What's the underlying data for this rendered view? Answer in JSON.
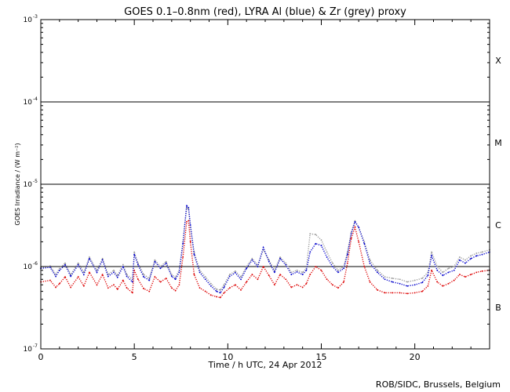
{
  "chart_data": {
    "type": "scatter",
    "title": "GOES 0.1–0.8nm (red), LYRA Al (blue) & Zr (grey) proxy",
    "xlabel": "Time / h UTC, 24 Apr 2012",
    "ylabel": "GOES Irradiance / (W m⁻²)",
    "credit": "ROB/SIDC, Brussels, Belgium",
    "xlim": [
      0,
      24
    ],
    "ylim": [
      1e-07,
      0.001
    ],
    "yscale": "log",
    "x_ticks": [
      0,
      5,
      10,
      15,
      20
    ],
    "y_ticks": [
      {
        "value": 1e-07,
        "mantissa": "10",
        "exp": "-7"
      },
      {
        "value": 1e-06,
        "mantissa": "10",
        "exp": "-6"
      },
      {
        "value": 1e-05,
        "mantissa": "10",
        "exp": "-5"
      },
      {
        "value": 0.0001,
        "mantissa": "10",
        "exp": "-4"
      },
      {
        "value": 0.001,
        "mantissa": "10",
        "exp": "-3"
      }
    ],
    "thresholds": [
      1e-06,
      1e-05,
      0.0001
    ],
    "flare_classes": [
      {
        "label": "B",
        "value": 3.2e-07
      },
      {
        "label": "C",
        "value": 3.2e-06
      },
      {
        "label": "M",
        "value": 3.2e-05
      },
      {
        "label": "X",
        "value": 0.00032
      }
    ],
    "series": [
      {
        "color": "#9a9a9a",
        "x": [
          0.0,
          0.5,
          0.8,
          1.0,
          1.3,
          1.6,
          2.0,
          2.3,
          2.6,
          3.0,
          3.3,
          3.6,
          3.9,
          4.1,
          4.4,
          4.6,
          4.9,
          5.0,
          5.2,
          5.5,
          5.8,
          6.1,
          6.4,
          6.7,
          7.0,
          7.2,
          7.4,
          7.6,
          7.8,
          7.9,
          8.0,
          8.2,
          8.5,
          8.8,
          9.1,
          9.4,
          9.6,
          9.8,
          10.1,
          10.4,
          10.7,
          11.0,
          11.3,
          11.6,
          11.9,
          12.2,
          12.5,
          12.8,
          13.1,
          13.4,
          13.7,
          14.0,
          14.2,
          14.4,
          14.7,
          15.0,
          15.3,
          15.6,
          15.9,
          16.2,
          16.4,
          16.6,
          16.8,
          17.0,
          17.3,
          17.6,
          18.0,
          18.4,
          18.8,
          19.2,
          19.6,
          20.0,
          20.4,
          20.7,
          20.9,
          21.2,
          21.5,
          21.8,
          22.1,
          22.4,
          22.7,
          23.0,
          23.3,
          23.6,
          24.0
        ],
        "y": [
          9.8e-07,
          1.02e-06,
          8e-07,
          9.5e-07,
          1.1e-06,
          8e-07,
          1.1e-06,
          8.5e-07,
          1.3e-06,
          9e-07,
          1.25e-06,
          8e-07,
          9e-07,
          7.8e-07,
          1.05e-06,
          8e-07,
          7e-07,
          1.5e-06,
          1.1e-06,
          8e-07,
          7.2e-07,
          1.2e-06,
          1e-06,
          1.15e-06,
          8e-07,
          7.4e-07,
          9e-07,
          2e-06,
          5.2e-06,
          5e-06,
          3e-06,
          1.5e-06,
          9e-07,
          7.5e-07,
          6.2e-07,
          5.3e-07,
          5.2e-07,
          6e-07,
          8e-07,
          8.8e-07,
          7.5e-07,
          1e-06,
          1.25e-06,
          1.05e-06,
          1.6e-06,
          1.2e-06,
          9e-07,
          1.3e-06,
          1.1e-06,
          8.5e-07,
          9e-07,
          8.5e-07,
          9.5e-07,
          2.5e-06,
          2.45e-06,
          2.1e-06,
          1.5e-06,
          1.1e-06,
          9e-07,
          1e-06,
          1.5e-06,
          2.6e-06,
          3.6e-06,
          3e-06,
          2e-06,
          1.2e-06,
          9e-07,
          7.5e-07,
          7.2e-07,
          7e-07,
          6.5e-07,
          6.8e-07,
          7.2e-07,
          8.5e-07,
          1.5e-06,
          1e-06,
          8.5e-07,
          9.5e-07,
          1e-06,
          1.3e-06,
          1.2e-06,
          1.35e-06,
          1.45e-06,
          1.5e-06,
          1.6e-06
        ]
      },
      {
        "color": "#0000cc",
        "x": [
          0.0,
          0.5,
          0.8,
          1.0,
          1.3,
          1.6,
          2.0,
          2.3,
          2.6,
          3.0,
          3.3,
          3.6,
          3.9,
          4.1,
          4.4,
          4.6,
          4.9,
          5.0,
          5.2,
          5.5,
          5.8,
          6.1,
          6.4,
          6.7,
          7.0,
          7.2,
          7.4,
          7.6,
          7.8,
          7.9,
          8.0,
          8.2,
          8.5,
          8.8,
          9.1,
          9.4,
          9.6,
          9.8,
          10.1,
          10.4,
          10.7,
          11.0,
          11.3,
          11.6,
          11.9,
          12.2,
          12.5,
          12.8,
          13.1,
          13.4,
          13.7,
          14.0,
          14.2,
          14.4,
          14.7,
          15.0,
          15.3,
          15.6,
          15.9,
          16.2,
          16.4,
          16.6,
          16.8,
          17.0,
          17.3,
          17.6,
          18.0,
          18.4,
          18.8,
          19.2,
          19.6,
          20.0,
          20.4,
          20.7,
          20.9,
          21.2,
          21.5,
          21.8,
          22.1,
          22.4,
          22.7,
          23.0,
          23.3,
          23.6,
          24.0
        ],
        "y": [
          9.5e-07,
          9.8e-07,
          7.6e-07,
          9e-07,
          1.05e-06,
          7.6e-07,
          1.05e-06,
          8e-07,
          1.25e-06,
          8.5e-07,
          1.2e-06,
          7.6e-07,
          8.5e-07,
          7.4e-07,
          1e-06,
          7.6e-07,
          6.5e-07,
          1.4e-06,
          1.05e-06,
          7.5e-07,
          6.8e-07,
          1.15e-06,
          9.5e-07,
          1.1e-06,
          7.6e-07,
          7e-07,
          8.5e-07,
          1.9e-06,
          5.5e-06,
          5.2e-06,
          3.2e-06,
          1.4e-06,
          8.5e-07,
          7e-07,
          5.8e-07,
          5e-07,
          4.8e-07,
          5.6e-07,
          7.6e-07,
          8.4e-07,
          7e-07,
          9.5e-07,
          1.2e-06,
          1e-06,
          1.7e-06,
          1.15e-06,
          8.5e-07,
          1.25e-06,
          1.05e-06,
          8e-07,
          8.6e-07,
          8e-07,
          9e-07,
          1.5e-06,
          1.9e-06,
          1.8e-06,
          1.3e-06,
          1e-06,
          8.5e-07,
          9.5e-07,
          1.4e-06,
          2.5e-06,
          3.5e-06,
          3e-06,
          1.9e-06,
          1.1e-06,
          8.5e-07,
          7e-07,
          6.5e-07,
          6.2e-07,
          5.8e-07,
          6e-07,
          6.4e-07,
          7.8e-07,
          1.35e-06,
          9e-07,
          7.8e-07,
          8.5e-07,
          9e-07,
          1.2e-06,
          1.1e-06,
          1.25e-06,
          1.35e-06,
          1.4e-06,
          1.5e-06
        ]
      },
      {
        "color": "#dd0000",
        "x": [
          0.0,
          0.5,
          0.8,
          1.0,
          1.3,
          1.6,
          2.0,
          2.3,
          2.6,
          3.0,
          3.3,
          3.6,
          3.9,
          4.1,
          4.4,
          4.6,
          4.9,
          5.0,
          5.2,
          5.5,
          5.8,
          6.1,
          6.4,
          6.7,
          7.0,
          7.2,
          7.4,
          7.6,
          7.8,
          7.9,
          8.0,
          8.2,
          8.5,
          8.8,
          9.1,
          9.4,
          9.6,
          9.8,
          10.1,
          10.4,
          10.7,
          11.0,
          11.3,
          11.6,
          11.9,
          12.2,
          12.5,
          12.8,
          13.1,
          13.4,
          13.7,
          14.0,
          14.2,
          14.4,
          14.7,
          15.0,
          15.3,
          15.6,
          15.9,
          16.2,
          16.4,
          16.6,
          16.8,
          17.0,
          17.3,
          17.6,
          18.0,
          18.4,
          18.8,
          19.2,
          19.6,
          20.0,
          20.4,
          20.7,
          20.9,
          21.2,
          21.5,
          21.8,
          22.1,
          22.4,
          22.7,
          23.0,
          23.3,
          23.6,
          24.0
        ],
        "y": [
          6.5e-07,
          6.8e-07,
          5.6e-07,
          6.2e-07,
          7.5e-07,
          5.6e-07,
          7.5e-07,
          5.8e-07,
          8.5e-07,
          6e-07,
          8e-07,
          5.5e-07,
          6e-07,
          5.3e-07,
          6.8e-07,
          5.5e-07,
          4.8e-07,
          9e-07,
          7e-07,
          5.4e-07,
          5e-07,
          7.5e-07,
          6.5e-07,
          7.2e-07,
          5.5e-07,
          5.1e-07,
          6e-07,
          1.3e-06,
          3.5e-06,
          3.6e-06,
          2e-06,
          8e-07,
          5.5e-07,
          5e-07,
          4.5e-07,
          4.3e-07,
          4.2e-07,
          4.8e-07,
          5.5e-07,
          6e-07,
          5.2e-07,
          6.5e-07,
          8e-07,
          7e-07,
          1e-06,
          7.8e-07,
          6e-07,
          8e-07,
          7e-07,
          5.6e-07,
          6e-07,
          5.6e-07,
          6.2e-07,
          8e-07,
          1e-06,
          9e-07,
          7e-07,
          6e-07,
          5.5e-07,
          6.5e-07,
          1.1e-06,
          2.2e-06,
          3e-06,
          2e-06,
          1e-06,
          6.5e-07,
          5.2e-07,
          4.8e-07,
          4.8e-07,
          4.8e-07,
          4.7e-07,
          4.8e-07,
          5e-07,
          5.8e-07,
          9e-07,
          6.5e-07,
          5.8e-07,
          6.2e-07,
          6.8e-07,
          8e-07,
          7.5e-07,
          8e-07,
          8.5e-07,
          8.8e-07,
          9e-07
        ]
      }
    ]
  }
}
